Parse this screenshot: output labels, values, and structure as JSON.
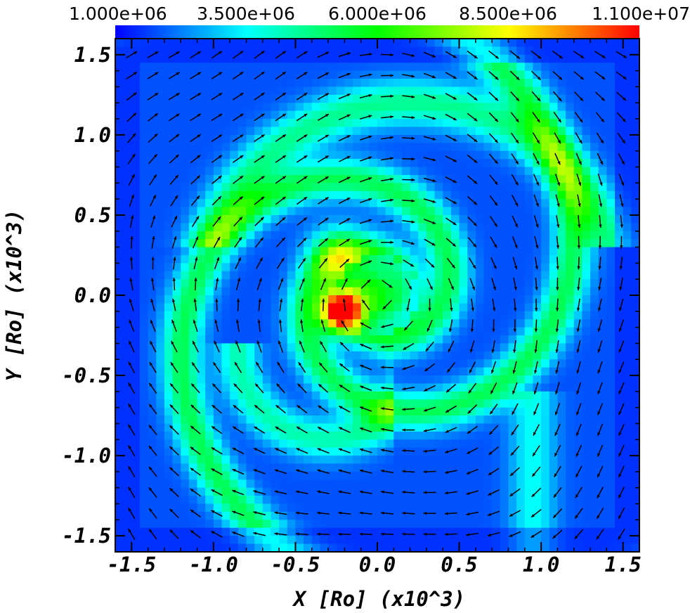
{
  "chart_data": {
    "type": "heatmap",
    "title": "",
    "xlabel": "X [Ro] (x10^3)",
    "ylabel": "Y [Ro] (x10^3)",
    "xlim": [
      -1.6,
      1.6
    ],
    "ylim": [
      -1.6,
      1.6
    ],
    "x_ticks": [
      "-1.5",
      "-1.0",
      "-0.5",
      "0.0",
      "0.5",
      "1.0",
      "1.5"
    ],
    "y_ticks": [
      "-1.5",
      "-1.0",
      "-0.5",
      "0.0",
      "0.5",
      "1.0",
      "1.5"
    ],
    "colorbar": {
      "position": "top",
      "range": [
        1000000,
        11000000
      ],
      "tick_labels": [
        "1.000e+06",
        "3.500e+06",
        "6.000e+06",
        "8.500e+06",
        "1.100e+07"
      ],
      "colormap": "rainbow",
      "colors": [
        "#0000ff",
        "#00ffff",
        "#00ff00",
        "#ffff00",
        "#ff0000"
      ]
    },
    "field_description": "two-armed spiral density structure with peak near (-0.22, -0.1); overlaid black velocity vectors showing clockwise rotation",
    "peak": {
      "x": -0.22,
      "y": -0.1,
      "value": 11000000
    },
    "background_level": 1800000,
    "vector_field": {
      "grid_step": 0.13,
      "rotation": "clockwise",
      "color": "#000000"
    },
    "grid": false,
    "legend": "none"
  }
}
